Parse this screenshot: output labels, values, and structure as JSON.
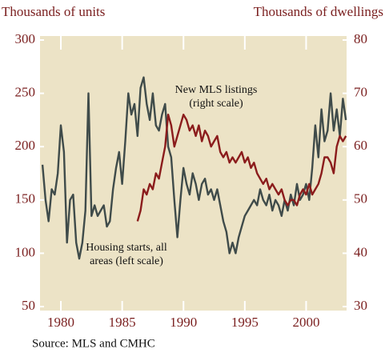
{
  "chart_data": {
    "type": "line",
    "y_label": "Thousands of units",
    "y2_label": "Thousands of dwellings",
    "source": "Source: MLS and CMHC",
    "xlim": [
      1978.3,
      2003.3
    ],
    "xticks": [
      1980,
      1985,
      1990,
      1995,
      2000
    ],
    "ylim": [
      50,
      300
    ],
    "yticks": [
      50,
      100,
      150,
      200,
      250,
      300
    ],
    "y2lim": [
      30,
      80
    ],
    "y2ticks": [
      30,
      40,
      50,
      60,
      70,
      80
    ],
    "series": [
      {
        "label": [
          "Housing starts, all",
          "areas (left scale)"
        ],
        "color": "#3f4b4a",
        "axis": "y",
        "x": [
          1978.5,
          1978.75,
          1979,
          1979.25,
          1979.5,
          1979.75,
          1980,
          1980.25,
          1980.5,
          1980.75,
          1981,
          1981.25,
          1981.5,
          1981.75,
          1982,
          1982.25,
          1982.5,
          1982.75,
          1983,
          1983.25,
          1983.5,
          1983.75,
          1984,
          1984.25,
          1984.5,
          1984.75,
          1985,
          1985.25,
          1985.5,
          1985.75,
          1986,
          1986.25,
          1986.5,
          1986.75,
          1987,
          1987.25,
          1987.5,
          1987.75,
          1988,
          1988.25,
          1988.5,
          1988.75,
          1989,
          1989.25,
          1989.5,
          1989.75,
          1990,
          1990.25,
          1990.5,
          1990.75,
          1991,
          1991.25,
          1991.5,
          1991.75,
          1992,
          1992.25,
          1992.5,
          1992.75,
          1993,
          1993.25,
          1993.5,
          1993.75,
          1994,
          1994.25,
          1994.5,
          1994.75,
          1995,
          1995.25,
          1995.5,
          1995.75,
          1996,
          1996.25,
          1996.5,
          1996.75,
          1997,
          1997.25,
          1997.5,
          1997.75,
          1998,
          1998.25,
          1998.5,
          1998.75,
          1999,
          1999.25,
          1999.5,
          1999.75,
          2000,
          2000.25,
          2000.5,
          2000.75,
          2001,
          2001.25,
          2001.5,
          2001.75,
          2002,
          2002.25,
          2002.5,
          2002.75,
          2003,
          2003.25
        ],
        "values": [
          183,
          150,
          130,
          160,
          155,
          175,
          220,
          195,
          110,
          150,
          155,
          110,
          95,
          110,
          140,
          250,
          135,
          145,
          135,
          140,
          145,
          125,
          130,
          160,
          180,
          195,
          165,
          205,
          250,
          230,
          240,
          210,
          255,
          265,
          240,
          225,
          250,
          220,
          215,
          230,
          240,
          200,
          190,
          150,
          115,
          150,
          180,
          165,
          155,
          175,
          165,
          150,
          165,
          170,
          155,
          160,
          150,
          160,
          145,
          130,
          120,
          100,
          110,
          100,
          115,
          125,
          135,
          140,
          145,
          150,
          145,
          160,
          150,
          145,
          155,
          140,
          150,
          145,
          135,
          150,
          140,
          155,
          145,
          165,
          150,
          155,
          165,
          150,
          180,
          220,
          190,
          235,
          205,
          215,
          250,
          215,
          235,
          210,
          245,
          225
        ]
      },
      {
        "label": [
          "New MLS listings",
          "(right scale)"
        ],
        "color": "#8b1c1c",
        "axis": "y2",
        "x": [
          1986.25,
          1986.5,
          1986.75,
          1987,
          1987.25,
          1987.5,
          1987.75,
          1988,
          1988.25,
          1988.5,
          1988.75,
          1989,
          1989.25,
          1989.5,
          1989.75,
          1990,
          1990.25,
          1990.5,
          1990.75,
          1991,
          1991.25,
          1991.5,
          1991.75,
          1992,
          1992.25,
          1992.5,
          1992.75,
          1993,
          1993.25,
          1993.5,
          1993.75,
          1994,
          1994.25,
          1994.5,
          1994.75,
          1995,
          1995.25,
          1995.5,
          1995.75,
          1996,
          1996.25,
          1996.5,
          1996.75,
          1997,
          1997.25,
          1997.5,
          1997.75,
          1998,
          1998.25,
          1998.5,
          1998.75,
          1999,
          1999.25,
          1999.5,
          1999.75,
          2000,
          2000.25,
          2000.5,
          2000.75,
          2001,
          2001.25,
          2001.5,
          2001.75,
          2002,
          2002.25,
          2002.5,
          2002.75,
          2003,
          2003.25
        ],
        "values": [
          46,
          48,
          52,
          51,
          53,
          52,
          55,
          54,
          57,
          60,
          66,
          64,
          60,
          62,
          64,
          66,
          65,
          63,
          64,
          62,
          64,
          61,
          63,
          62,
          60,
          61,
          62,
          59,
          58,
          59,
          57,
          58,
          57,
          58,
          59,
          57,
          58,
          56,
          57,
          55,
          54,
          53,
          54,
          52,
          53,
          52,
          51,
          52,
          50,
          49,
          50,
          50,
          49,
          51,
          52,
          51,
          53,
          51,
          52,
          53,
          55,
          58,
          58,
          57,
          55,
          60,
          62,
          61,
          62
        ]
      }
    ]
  }
}
